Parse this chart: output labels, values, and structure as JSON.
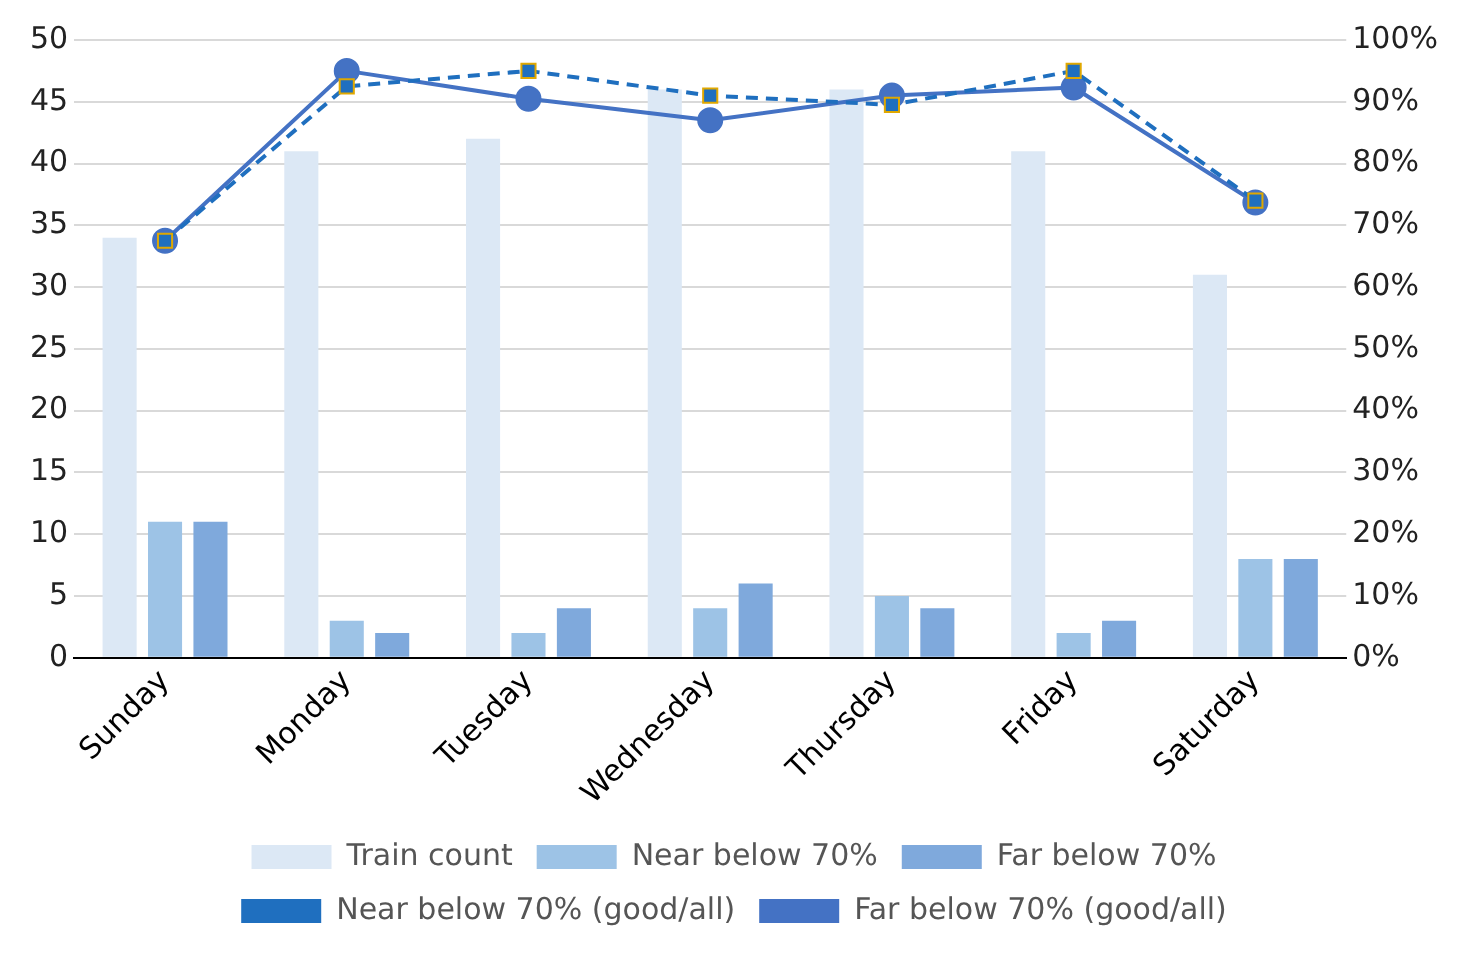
{
  "chart_data": {
    "type": "bar",
    "categories": [
      "Sunday",
      "Monday",
      "Tuesday",
      "Wednesday",
      "Thursday",
      "Friday",
      "Saturday"
    ],
    "series": [
      {
        "name": "Train count",
        "color": "#dce8f5",
        "values": [
          34,
          41,
          42,
          46,
          46,
          41,
          31
        ]
      },
      {
        "name": "Near below 70%",
        "color": "#9dc3e6",
        "values": [
          11,
          3,
          2,
          4,
          5,
          2,
          8
        ]
      },
      {
        "name": "Far below 70%",
        "color": "#7fa9dc",
        "values": [
          11,
          2,
          4,
          6,
          4,
          3,
          8
        ]
      },
      {
        "name": "Near below 70% (good/all)",
        "type": "line",
        "axis": "y2",
        "color": "#1f6fbf",
        "marker": "square",
        "line_style": "dashed",
        "values": [
          67.5,
          92.5,
          95,
          91,
          89.5,
          95,
          74
        ]
      },
      {
        "name": "Far below 70% (good/all)",
        "type": "line",
        "axis": "y2",
        "color": "#4472c4",
        "marker": "circle",
        "line_style": "solid",
        "values": [
          67.5,
          95,
          90.5,
          87,
          91,
          92.3,
          73.7
        ]
      }
    ],
    "ylim": [
      0,
      50
    ],
    "yticks": [
      0,
      5,
      10,
      15,
      20,
      25,
      30,
      35,
      40,
      45,
      50
    ],
    "y2lim": [
      0,
      100
    ],
    "y2ticks": [
      {
        "value": 0,
        "label": "0%"
      },
      {
        "value": 10,
        "label": "10%"
      },
      {
        "value": 20,
        "label": "20%"
      },
      {
        "value": 30,
        "label": "30%"
      },
      {
        "value": 40,
        "label": "40%"
      },
      {
        "value": 50,
        "label": "50%"
      },
      {
        "value": 60,
        "label": "60%"
      },
      {
        "value": 70,
        "label": "70%"
      },
      {
        "value": 80,
        "label": "80%"
      },
      {
        "value": 90,
        "label": "90%"
      },
      {
        "value": 100,
        "label": "100%"
      }
    ],
    "grid": "y",
    "legend": "bottom"
  }
}
